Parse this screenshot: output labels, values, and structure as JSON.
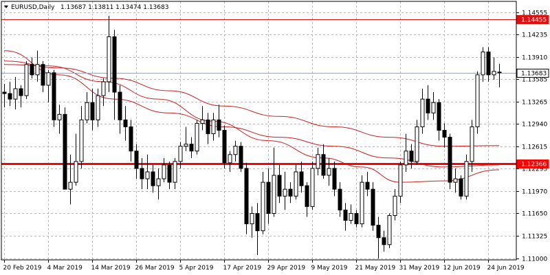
{
  "header": {
    "symbol": "EURUSD,Daily",
    "ohlc": "1.13687 1.13811 1.13474 1.13683",
    "dropdown_icon": "triangle-down-icon"
  },
  "chart_data": {
    "type": "candlestick",
    "symbol": "EURUSD",
    "timeframe": "Daily",
    "ylim": [
      1.1098,
      1.1471
    ],
    "y_ticks": [
      "1.14555",
      "1.14235",
      "1.13910",
      "1.13585",
      "1.13265",
      "1.12940",
      "1.12615",
      "1.12295",
      "1.11970",
      "1.11650",
      "1.11325",
      "1.11000"
    ],
    "y_tick_values": [
      1.14555,
      1.14235,
      1.1391,
      1.13585,
      1.13265,
      1.1294,
      1.12615,
      1.12295,
      1.1197,
      1.1165,
      1.11325,
      1.11
    ],
    "x_labels": [
      "20 Feb 2019",
      "4 Mar 2019",
      "14 Mar 2019",
      "26 Mar 2019",
      "5 Apr 2019",
      "17 Apr 2019",
      "29 Apr 2019",
      "9 May 2019",
      "21 May 2019",
      "31 May 2019",
      "12 Jun 2019",
      "24 Jun 2019"
    ],
    "x_label_bar_index": [
      0,
      8,
      16,
      24,
      32,
      40,
      48,
      56,
      64,
      72,
      80,
      88
    ],
    "grid": true,
    "levels": [
      {
        "value": 1.14455,
        "label": "1.14455",
        "color": "#e01010",
        "thickness": "thin"
      },
      {
        "value": 1.12366,
        "label": "1.12366",
        "color": "#ff0000",
        "thickness": "thick"
      },
      {
        "value": 1.13683,
        "label": "1.13683",
        "color": "#9aa4b0",
        "thickness": "thin",
        "label_style": "current-price"
      }
    ],
    "candles": [
      [
        1.134,
        1.1352,
        1.1318,
        1.1338
      ],
      [
        1.1338,
        1.1355,
        1.132,
        1.133
      ],
      [
        1.133,
        1.1362,
        1.1315,
        1.1345
      ],
      [
        1.1345,
        1.135,
        1.1318,
        1.1335
      ],
      [
        1.1335,
        1.1385,
        1.133,
        1.138
      ],
      [
        1.138,
        1.139,
        1.136,
        1.1365
      ],
      [
        1.1365,
        1.14,
        1.1355,
        1.138
      ],
      [
        1.138,
        1.1385,
        1.134,
        1.135
      ],
      [
        1.135,
        1.1372,
        1.1325,
        1.1368
      ],
      [
        1.1368,
        1.1372,
        1.129,
        1.13
      ],
      [
        1.13,
        1.1322,
        1.128,
        1.1308
      ],
      [
        1.1308,
        1.1318,
        1.12,
        1.12
      ],
      [
        1.12,
        1.125,
        1.1178,
        1.121
      ],
      [
        1.121,
        1.128,
        1.1205,
        1.124
      ],
      [
        1.124,
        1.132,
        1.123,
        1.13
      ],
      [
        1.13,
        1.134,
        1.1295,
        1.1325
      ],
      [
        1.1325,
        1.1345,
        1.1285,
        1.13
      ],
      [
        1.13,
        1.1345,
        1.129,
        1.1335
      ],
      [
        1.1335,
        1.136,
        1.132,
        1.1355
      ],
      [
        1.1355,
        1.145,
        1.134,
        1.142
      ],
      [
        1.142,
        1.143,
        1.13,
        1.134
      ],
      [
        1.134,
        1.135,
        1.128,
        1.13
      ],
      [
        1.13,
        1.132,
        1.127,
        1.129
      ],
      [
        1.129,
        1.13,
        1.124,
        1.1255
      ],
      [
        1.1255,
        1.1265,
        1.1215,
        1.123
      ],
      [
        1.123,
        1.1245,
        1.12,
        1.1215
      ],
      [
        1.1215,
        1.125,
        1.12,
        1.1225
      ],
      [
        1.1225,
        1.1235,
        1.1195,
        1.1205
      ],
      [
        1.1205,
        1.123,
        1.1185,
        1.1215
      ],
      [
        1.1215,
        1.1245,
        1.121,
        1.1235
      ],
      [
        1.1235,
        1.124,
        1.12,
        1.121
      ],
      [
        1.121,
        1.1245,
        1.12,
        1.124
      ],
      [
        1.124,
        1.1268,
        1.123,
        1.1262
      ],
      [
        1.1262,
        1.129,
        1.1255,
        1.1265
      ],
      [
        1.1265,
        1.1275,
        1.1245,
        1.1255
      ],
      [
        1.1255,
        1.13,
        1.125,
        1.1295
      ],
      [
        1.1295,
        1.132,
        1.1285,
        1.13
      ],
      [
        1.13,
        1.131,
        1.1265,
        1.128
      ],
      [
        1.128,
        1.131,
        1.127,
        1.13
      ],
      [
        1.13,
        1.1322,
        1.1275,
        1.1285
      ],
      [
        1.1285,
        1.1292,
        1.123,
        1.1238
      ],
      [
        1.1238,
        1.1255,
        1.1225,
        1.125
      ],
      [
        1.125,
        1.127,
        1.124,
        1.1262
      ],
      [
        1.1262,
        1.1268,
        1.1225,
        1.123
      ],
      [
        1.123,
        1.1238,
        1.1135,
        1.115
      ],
      [
        1.115,
        1.1175,
        1.113,
        1.1165
      ],
      [
        1.1165,
        1.118,
        1.1105,
        1.114
      ],
      [
        1.114,
        1.1225,
        1.1135,
        1.121
      ],
      [
        1.121,
        1.123,
        1.115,
        1.1165
      ],
      [
        1.1165,
        1.126,
        1.116,
        1.122
      ],
      [
        1.122,
        1.1235,
        1.118,
        1.119
      ],
      [
        1.119,
        1.1225,
        1.117,
        1.12
      ],
      [
        1.12,
        1.121,
        1.118,
        1.119
      ],
      [
        1.119,
        1.1235,
        1.1185,
        1.1225
      ],
      [
        1.1225,
        1.124,
        1.1195,
        1.1205
      ],
      [
        1.1205,
        1.121,
        1.116,
        1.1175
      ],
      [
        1.1175,
        1.124,
        1.117,
        1.123
      ],
      [
        1.123,
        1.126,
        1.122,
        1.125
      ],
      [
        1.125,
        1.1265,
        1.1215,
        1.122
      ],
      [
        1.122,
        1.1245,
        1.1205,
        1.123
      ],
      [
        1.123,
        1.124,
        1.119,
        1.12
      ],
      [
        1.12,
        1.121,
        1.116,
        1.117
      ],
      [
        1.117,
        1.118,
        1.114,
        1.1155
      ],
      [
        1.1155,
        1.1178,
        1.115,
        1.1165
      ],
      [
        1.1165,
        1.117,
        1.1145,
        1.115
      ],
      [
        1.115,
        1.122,
        1.1145,
        1.121
      ],
      [
        1.121,
        1.1225,
        1.119,
        1.12
      ],
      [
        1.12,
        1.121,
        1.114,
        1.1148
      ],
      [
        1.1148,
        1.116,
        1.11,
        1.113
      ],
      [
        1.113,
        1.114,
        1.111,
        1.112
      ],
      [
        1.112,
        1.1165,
        1.1115,
        1.1162
      ],
      [
        1.1162,
        1.12,
        1.1155,
        1.119
      ],
      [
        1.119,
        1.124,
        1.118,
        1.1235
      ],
      [
        1.1235,
        1.128,
        1.1225,
        1.1255
      ],
      [
        1.1255,
        1.1265,
        1.123,
        1.124
      ],
      [
        1.124,
        1.13,
        1.1235,
        1.129
      ],
      [
        1.129,
        1.1345,
        1.128,
        1.133
      ],
      [
        1.133,
        1.135,
        1.13,
        1.131
      ],
      [
        1.131,
        1.134,
        1.13,
        1.1325
      ],
      [
        1.1325,
        1.133,
        1.127,
        1.1285
      ],
      [
        1.1285,
        1.1295,
        1.126,
        1.1275
      ],
      [
        1.1275,
        1.128,
        1.12,
        1.121
      ],
      [
        1.121,
        1.123,
        1.1195,
        1.1215
      ],
      [
        1.1215,
        1.122,
        1.1185,
        1.119
      ],
      [
        1.119,
        1.125,
        1.1185,
        1.124
      ],
      [
        1.124,
        1.13,
        1.1225,
        1.129
      ],
      [
        1.129,
        1.137,
        1.128,
        1.1365
      ],
      [
        1.1365,
        1.1405,
        1.1355,
        1.1398
      ],
      [
        1.1398,
        1.1405,
        1.1355,
        1.1365
      ],
      [
        1.1365,
        1.139,
        1.1358,
        1.137
      ],
      [
        1.1369,
        1.1381,
        1.1347,
        1.1368
      ]
    ],
    "ma_lines": [
      {
        "color": "#cc1f1f",
        "points": [
          [
            0,
            1.14
          ],
          [
            10,
            1.1365
          ],
          [
            20,
            1.133
          ],
          [
            30,
            1.131
          ],
          [
            40,
            1.129
          ],
          [
            50,
            1.1275
          ],
          [
            60,
            1.1262
          ],
          [
            70,
            1.1245
          ],
          [
            80,
            1.1232
          ],
          [
            90,
            1.1235
          ]
        ]
      },
      {
        "color": "#cc1f1f",
        "points": [
          [
            0,
            1.1385
          ],
          [
            10,
            1.1375
          ],
          [
            20,
            1.136
          ],
          [
            30,
            1.1342
          ],
          [
            40,
            1.132
          ],
          [
            50,
            1.1305
          ],
          [
            60,
            1.129
          ],
          [
            70,
            1.1275
          ],
          [
            80,
            1.1262
          ],
          [
            90,
            1.1263
          ]
        ]
      },
      {
        "color": "#cc1f1f",
        "points": [
          [
            0,
            1.138
          ],
          [
            8,
            1.1378
          ],
          [
            18,
            1.1355
          ],
          [
            28,
            1.133
          ],
          [
            38,
            1.1298
          ],
          [
            48,
            1.127
          ],
          [
            58,
            1.1245
          ],
          [
            65,
            1.1232
          ],
          [
            72,
            1.121
          ],
          [
            80,
            1.1212
          ],
          [
            90,
            1.1228
          ]
        ]
      }
    ]
  }
}
